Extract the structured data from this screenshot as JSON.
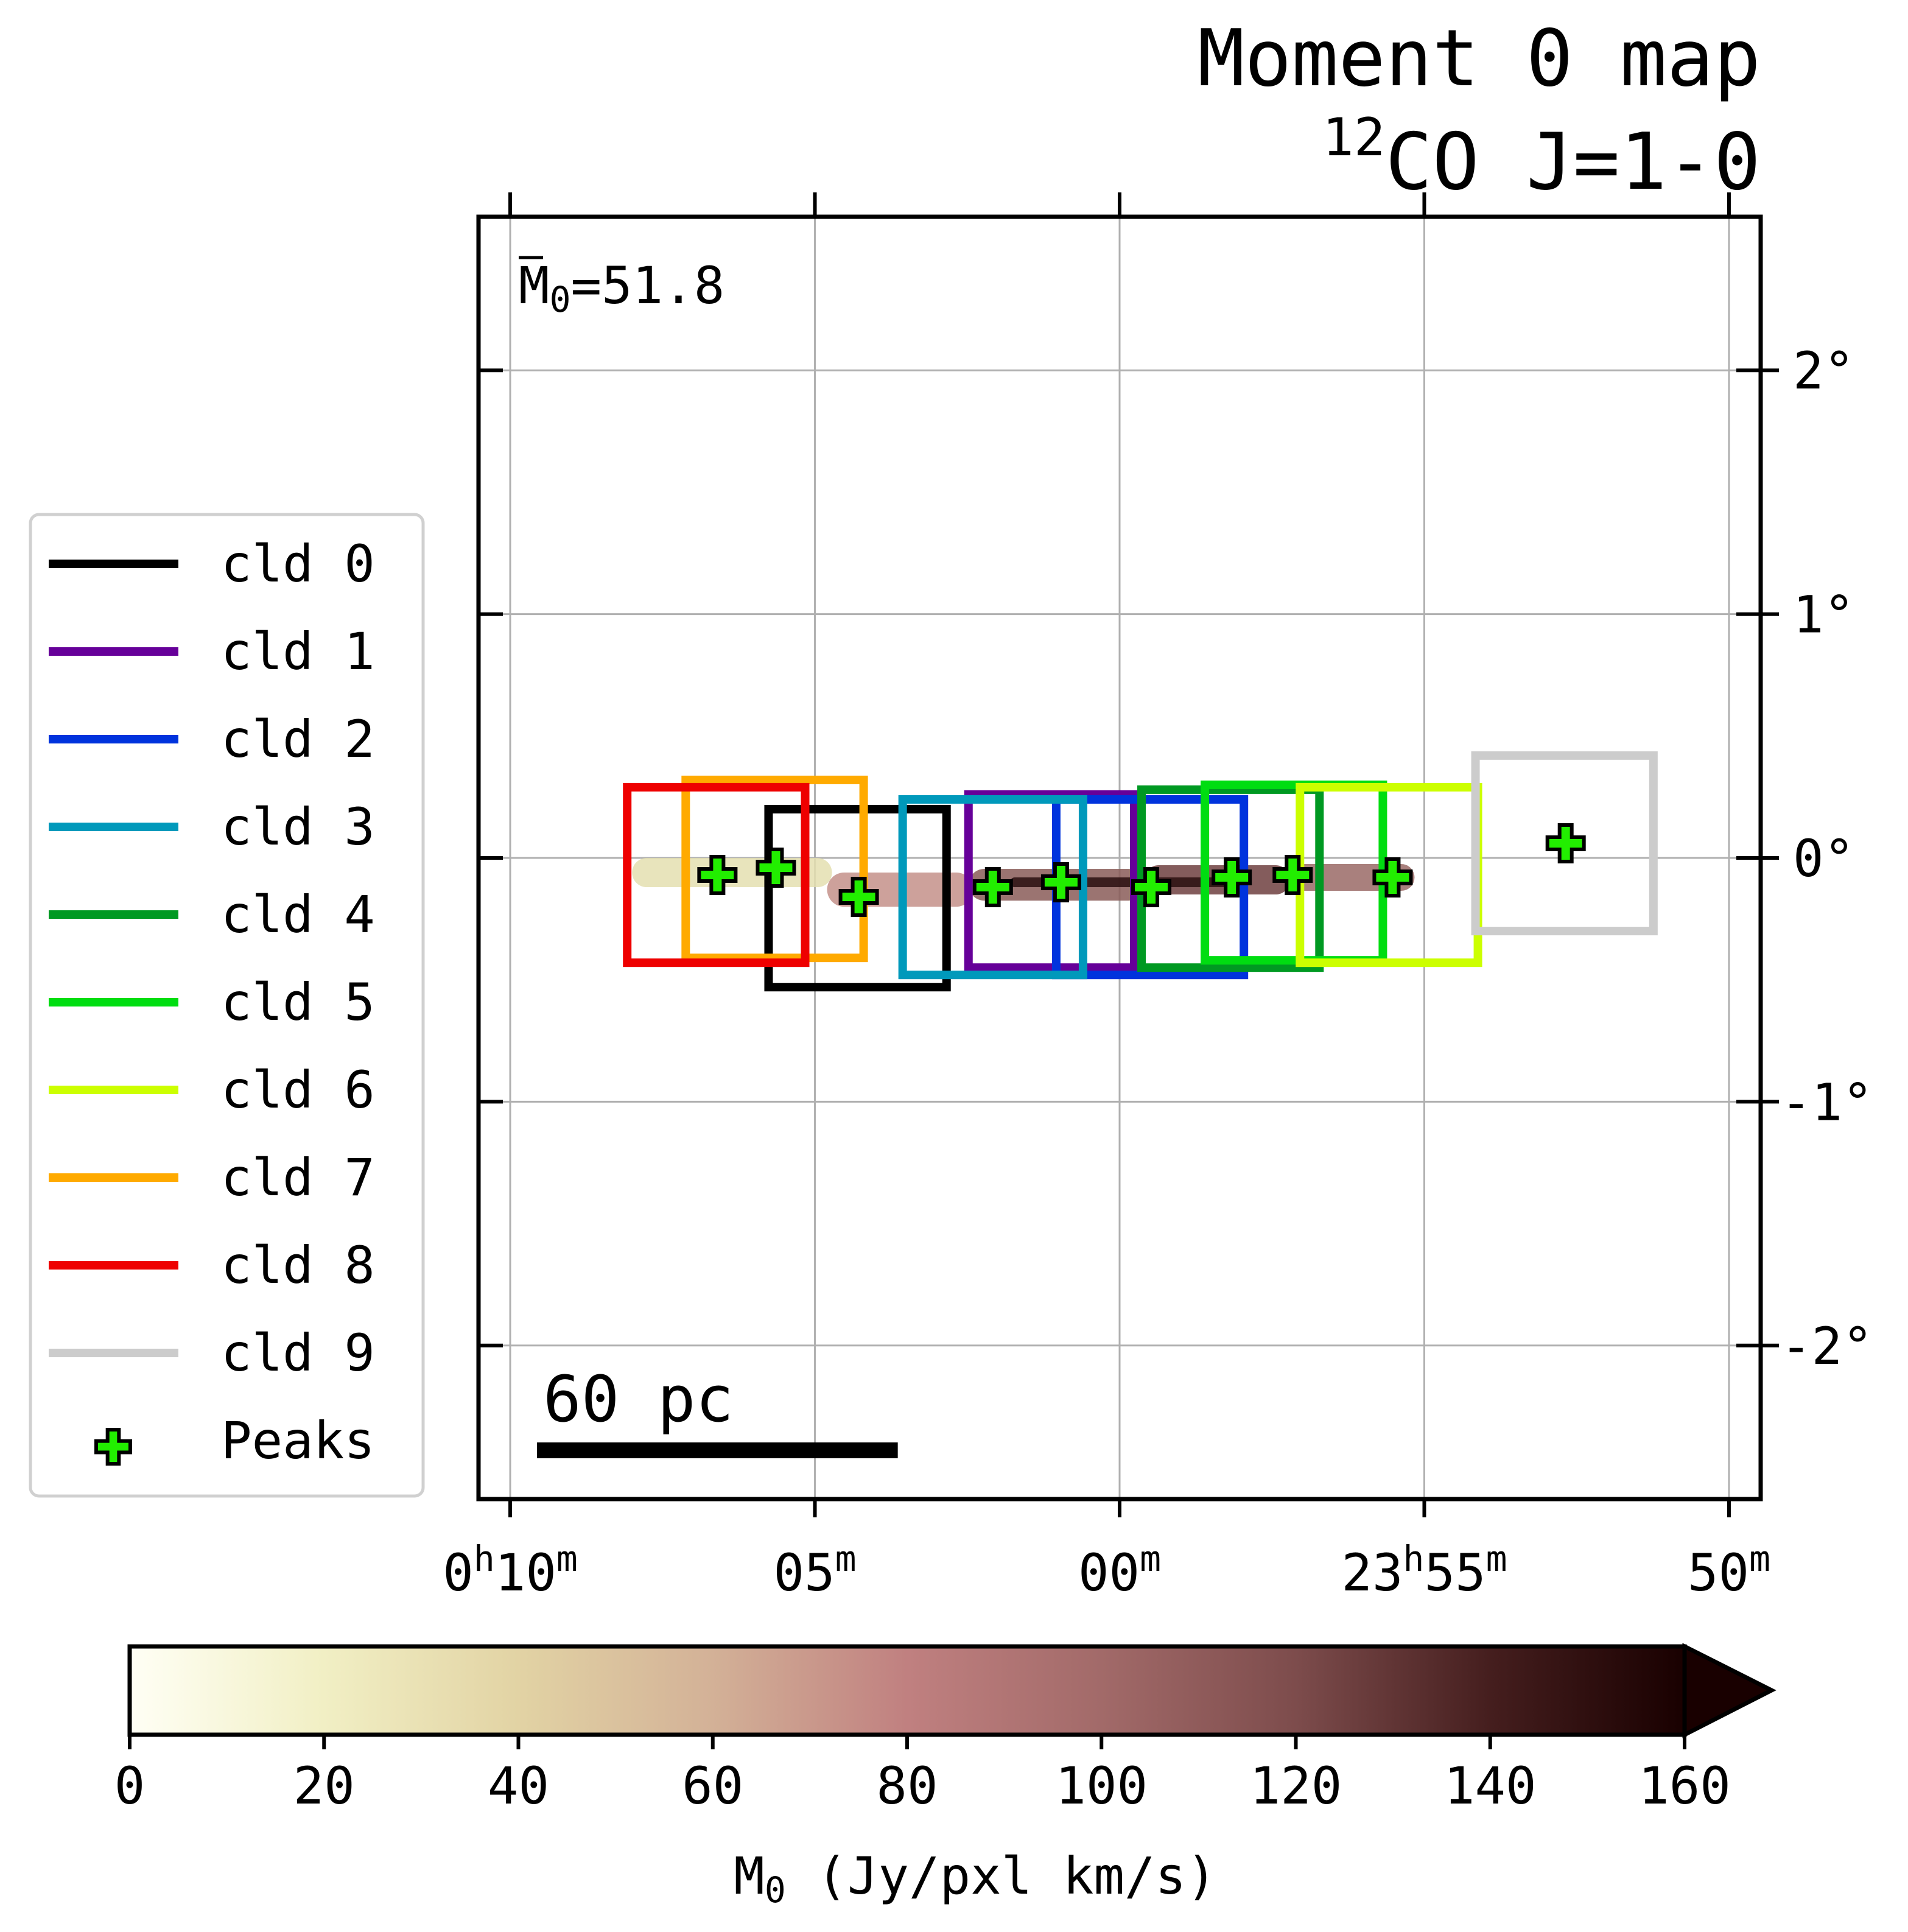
{
  "chart_data": {
    "type": "map",
    "title_line1": "Moment 0 map",
    "title_sup": "12",
    "title_line2": "CO J=1-0",
    "annotation": {
      "symbol": "M",
      "subscript": "0",
      "text": "=51.8",
      "value": 51.8
    },
    "x_axis": {
      "ticks": [
        {
          "value": 2.5,
          "h": "0",
          "m": "10"
        },
        {
          "value": 1.25,
          "h": "",
          "m": "05"
        },
        {
          "value": 0.0,
          "h": "",
          "m": "00"
        },
        {
          "value": -1.25,
          "h": "23",
          "m": "55"
        },
        {
          "value": -2.5,
          "h": "",
          "m": "50"
        }
      ],
      "lim": [
        2.63,
        -2.63
      ],
      "h_unit": "h",
      "m_unit": "m"
    },
    "y_axis": {
      "ticks": [
        {
          "value": 2,
          "label": "2°"
        },
        {
          "value": 1,
          "label": "1°"
        },
        {
          "value": 0,
          "label": "0°"
        },
        {
          "value": -1,
          "label": "-1°"
        },
        {
          "value": -2,
          "label": "-2°"
        }
      ],
      "lim": [
        -2.63,
        2.63
      ]
    },
    "grid": true,
    "clouds": [
      {
        "label": "cld 0",
        "color": "#000000",
        "x0": 1.44,
        "x1": 0.71,
        "y0": -0.53,
        "y1": 0.2
      },
      {
        "label": "cld 1",
        "color": "#660099",
        "x0": 0.62,
        "x1": -0.06,
        "y0": -0.45,
        "y1": 0.26
      },
      {
        "label": "cld 2",
        "color": "#0033dd",
        "x0": 0.26,
        "x1": -0.51,
        "y0": -0.48,
        "y1": 0.24
      },
      {
        "label": "cld 3",
        "color": "#0099bb",
        "x0": 0.89,
        "x1": 0.15,
        "y0": -0.48,
        "y1": 0.24
      },
      {
        "label": "cld 4",
        "color": "#009922",
        "x0": -0.09,
        "x1": -0.82,
        "y0": -0.45,
        "y1": 0.28
      },
      {
        "label": "cld 5",
        "color": "#00dd11",
        "x0": -0.35,
        "x1": -1.08,
        "y0": -0.42,
        "y1": 0.3
      },
      {
        "label": "cld 6",
        "color": "#ccff00",
        "x0": -0.74,
        "x1": -1.47,
        "y0": -0.43,
        "y1": 0.29
      },
      {
        "label": "cld 7",
        "color": "#ffaa00",
        "x0": 1.78,
        "x1": 1.05,
        "y0": -0.41,
        "y1": 0.32
      },
      {
        "label": "cld 8",
        "color": "#ee0000",
        "x0": 2.02,
        "x1": 1.29,
        "y0": -0.43,
        "y1": 0.29
      },
      {
        "label": "cld 9",
        "color": "#cccccc",
        "x0": -1.46,
        "x1": -2.19,
        "y0": -0.3,
        "y1": 0.42
      }
    ],
    "peaks": {
      "label": "Peaks",
      "color": "#22ee00",
      "points": [
        {
          "x": 1.65,
          "y": -0.07
        },
        {
          "x": 1.41,
          "y": -0.04
        },
        {
          "x": 1.07,
          "y": -0.16
        },
        {
          "x": 0.52,
          "y": -0.12
        },
        {
          "x": 0.24,
          "y": -0.1
        },
        {
          "x": -0.13,
          "y": -0.12
        },
        {
          "x": -0.46,
          "y": -0.08
        },
        {
          "x": -0.71,
          "y": -0.07
        },
        {
          "x": -1.12,
          "y": -0.08
        },
        {
          "x": -1.83,
          "y": 0.06
        }
      ]
    },
    "emission": [
      {
        "x0": 2.0,
        "x1": 1.18,
        "y": -0.06,
        "h": 0.06,
        "color": "#e4dfb0"
      },
      {
        "x0": 1.2,
        "x1": 0.6,
        "y": -0.13,
        "h": 0.07,
        "color": "#c4908a"
      },
      {
        "x0": 0.62,
        "x1": -0.1,
        "y": -0.11,
        "h": 0.065,
        "color": "#8a5c58"
      },
      {
        "x0": -0.1,
        "x1": -0.7,
        "y": -0.09,
        "h": 0.06,
        "color": "#6e3f3f"
      },
      {
        "x0": -0.7,
        "x1": -1.21,
        "y": -0.08,
        "h": 0.055,
        "color": "#9a6a66"
      },
      {
        "x0": 0.45,
        "x1": -0.5,
        "y": -0.1,
        "h": 0.02,
        "color": "#2a0f0f"
      }
    ],
    "scale_bar": {
      "label": "60 pc",
      "x0": 2.39,
      "x1": 0.91,
      "y": -2.43
    },
    "colorbar": {
      "ticks": [
        0,
        20,
        40,
        60,
        80,
        100,
        120,
        140,
        160
      ],
      "lim": [
        0,
        160
      ],
      "extend": "max",
      "label_symbol": "M",
      "label_sub": "0",
      "label_text": " (Jy/pxl km/s)",
      "stops": [
        "#fffff5",
        "#f1efc4",
        "#e2d3a4",
        "#d3b197",
        "#c08080",
        "#a26a69",
        "#7d4c4c",
        "#451e1e",
        "#190000"
      ]
    },
    "legend_placement": "left"
  }
}
